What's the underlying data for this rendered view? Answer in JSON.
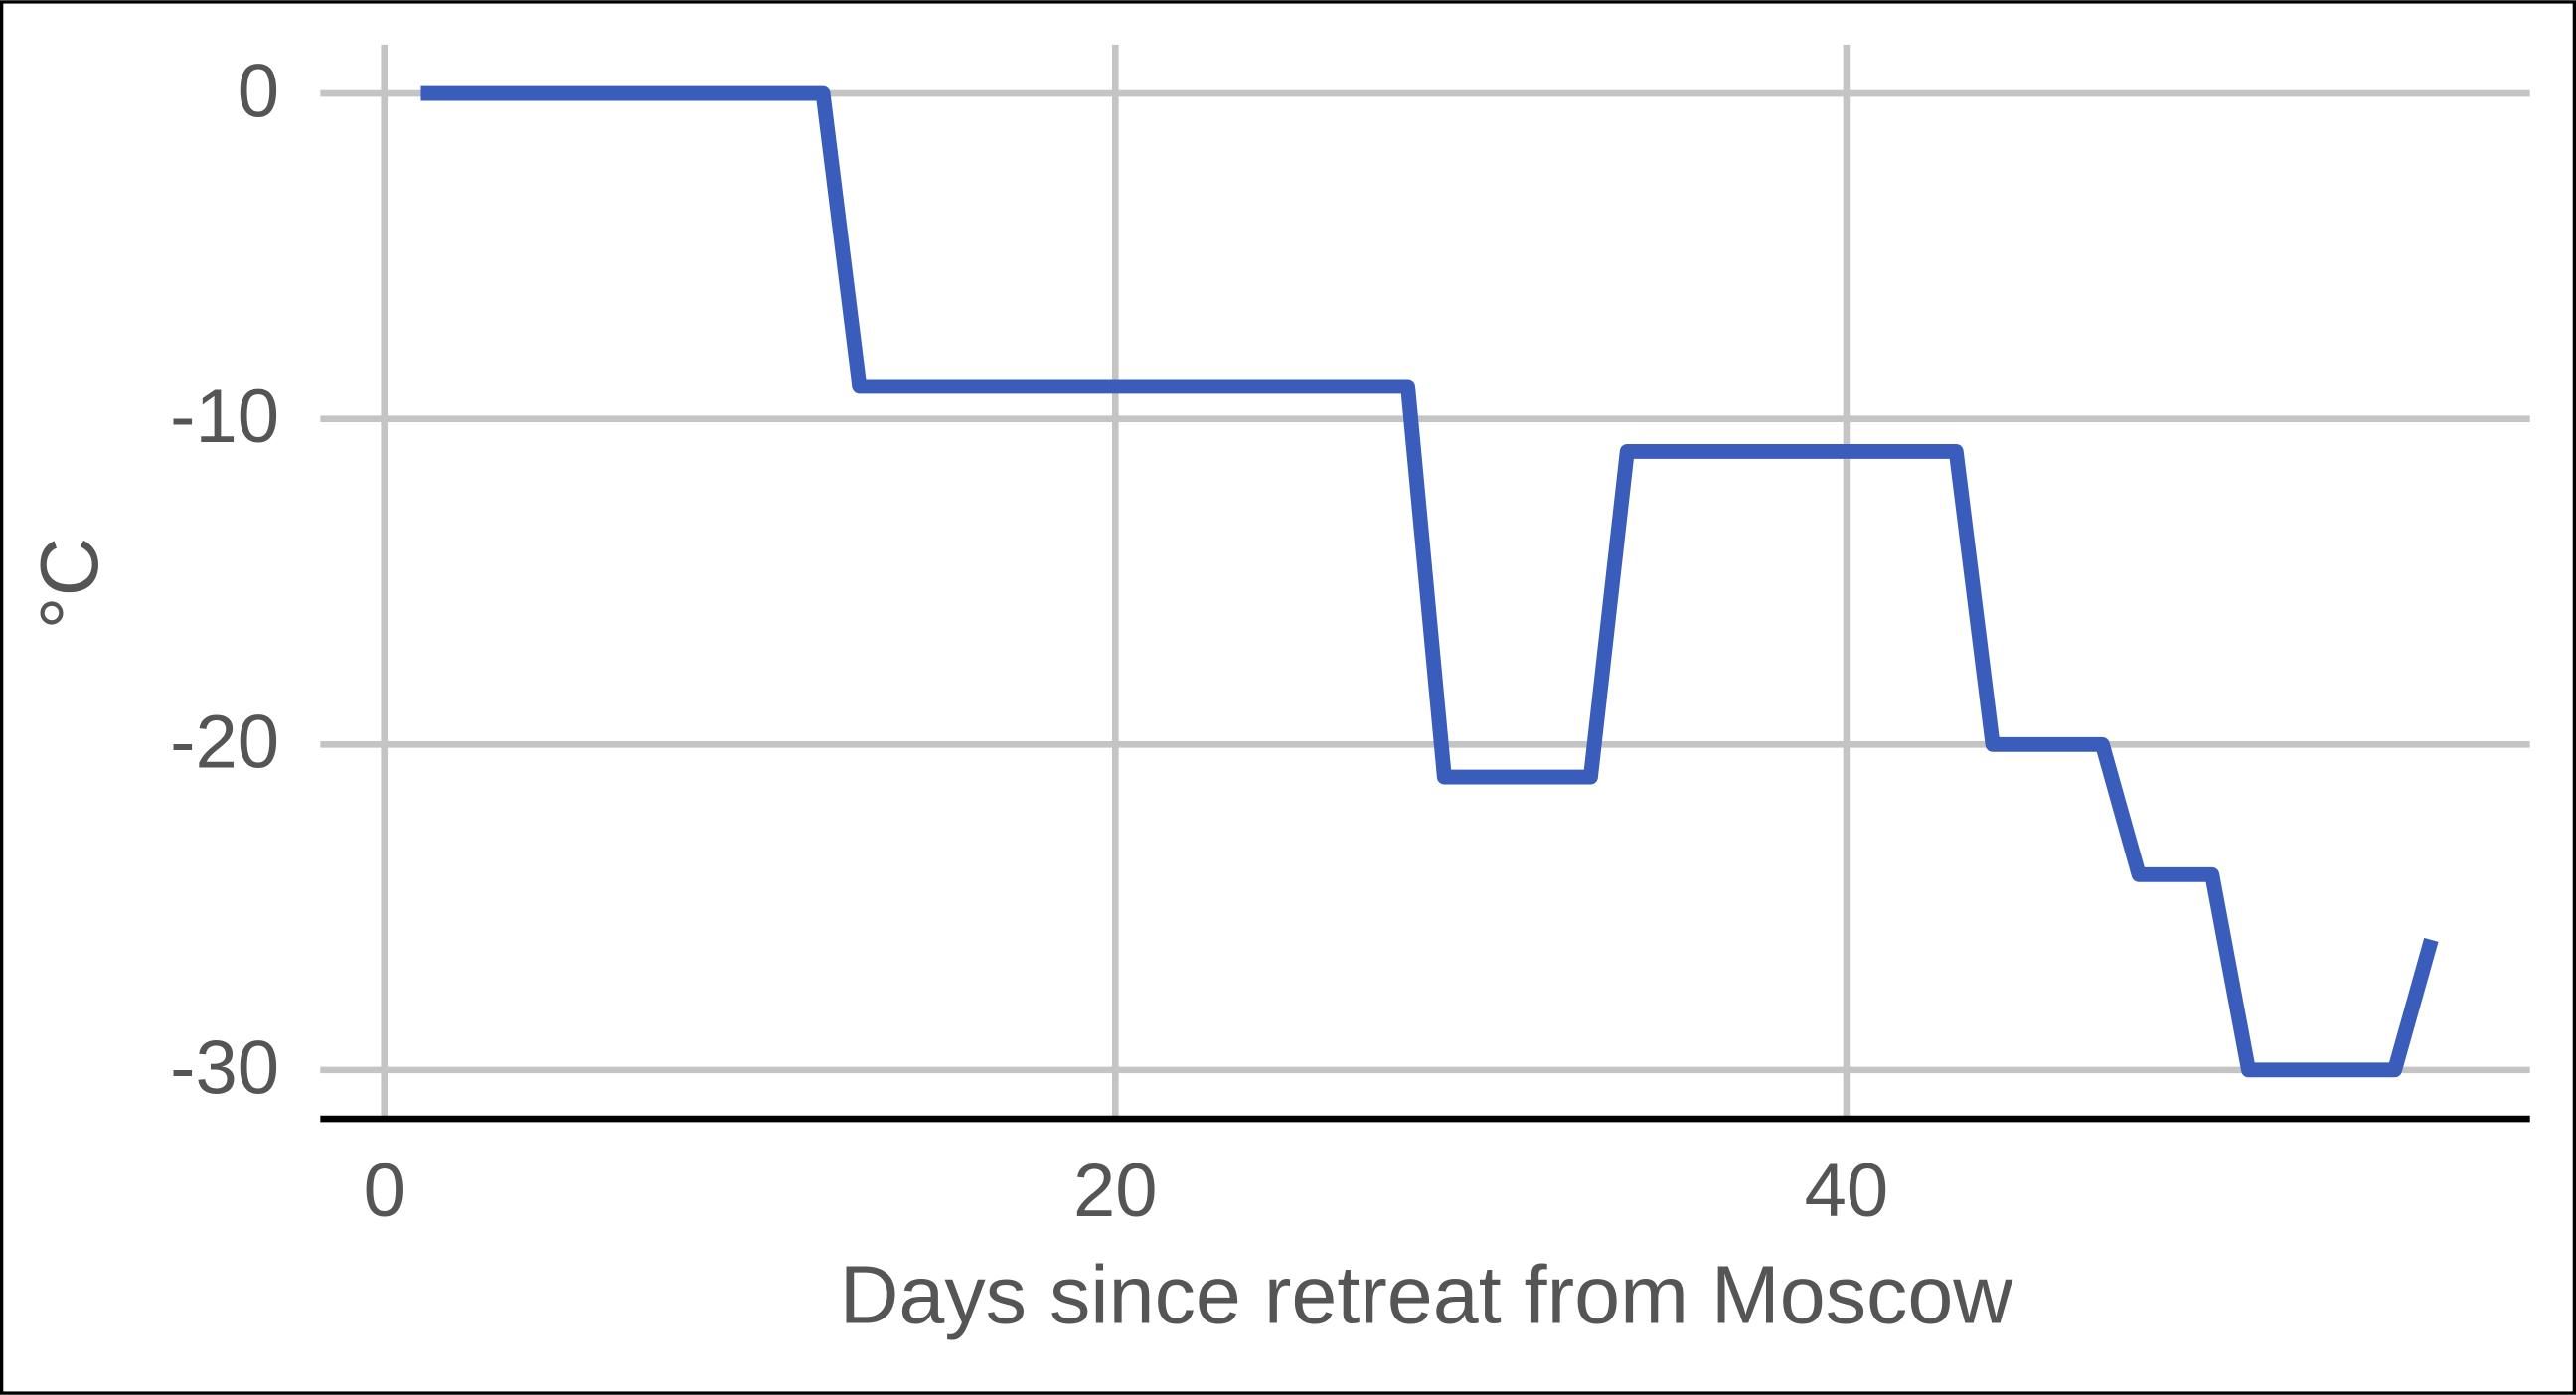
{
  "chart_data": {
    "type": "line",
    "x_label": "Days since retreat from Moscow",
    "y_label": "°C",
    "x": [
      1,
      12,
      13,
      28,
      29,
      33,
      34,
      43,
      44,
      47,
      48,
      50,
      51,
      55,
      56
    ],
    "series": [
      {
        "color": "#3a5dbb",
        "values": [
          0,
          0,
          -9,
          -9,
          -21,
          -21,
          -11,
          -11,
          -20,
          -20,
          -24,
          -24,
          -30,
          -30,
          -26
        ]
      }
    ],
    "xlim": [
      -1.75,
      58.7
    ],
    "ylim": [
      -31.5,
      1.5
    ],
    "xticks": [
      0,
      20,
      40
    ],
    "yticks": [
      0,
      -10,
      -20,
      -30
    ],
    "grid": true
  }
}
